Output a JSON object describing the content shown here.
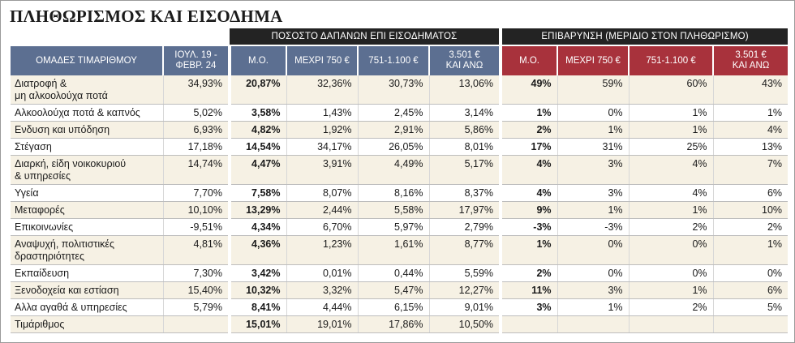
{
  "title": "ΠΛΗΘΩΡΙΣΜΟΣ ΚΑΙ ΕΙΣΟΔΗΜΑ",
  "chart_data": {
    "type": "table",
    "title": "ΠΛΗΘΩΡΙΣΜΟΣ ΚΑΙ ΕΙΣΟΔΗΜΑ",
    "column_groups": [
      {
        "label": "ΠΟΣΟΣΤΟ ΔΑΠΑΝΩΝ ΕΠΙ ΕΙΣΟΔΗΜΑΤΟΣ",
        "span": 4
      },
      {
        "label": "ΕΠΙΒΑΡΥΝΣΗ (ΜΕΡΙΔΙΟ ΣΤΟΝ ΠΛΗΘΩΡΙΣΜΟ)",
        "span": 4
      }
    ],
    "headers": [
      "ΟΜΑΔΕΣ ΤΙΜΑΡΙΘΜΟΥ",
      "ΙΟΥΛ. 19 -\nΦΕΒΡ. 24",
      "Μ.Ο.",
      "ΜΕΧΡΙ 750 €",
      "751-1.100 €",
      "3.501 €\nΚΑΙ ΑΝΩ",
      "Μ.Ο.",
      "ΜΕΧΡΙ 750 €",
      "751-1.100 €",
      "3.501 €\nΚΑΙ ΑΝΩ"
    ],
    "rows": [
      {
        "group": "Διατροφή &\nμη αλκοολούχα ποτά",
        "values": [
          "34,93%",
          "20,87%",
          "32,36%",
          "30,73%",
          "13,06%",
          "49%",
          "59%",
          "60%",
          "43%"
        ]
      },
      {
        "group": "Αλκοολούχα ποτά & καπνός",
        "values": [
          "5,02%",
          "3,58%",
          "1,43%",
          "2,45%",
          "3,14%",
          "1%",
          "0%",
          "1%",
          "1%"
        ]
      },
      {
        "group": "Ενδυση και υπόδηση",
        "values": [
          "6,93%",
          "4,82%",
          "1,92%",
          "2,91%",
          "5,86%",
          "2%",
          "1%",
          "1%",
          "4%"
        ]
      },
      {
        "group": "Στέγαση",
        "values": [
          "17,18%",
          "14,54%",
          "34,17%",
          "26,05%",
          "8,01%",
          "17%",
          "31%",
          "25%",
          "13%"
        ]
      },
      {
        "group": "Διαρκή, είδη νοικοκυριού\n& υπηρεσίες",
        "values": [
          "14,74%",
          "4,47%",
          "3,91%",
          "4,49%",
          "5,17%",
          "4%",
          "3%",
          "4%",
          "7%"
        ]
      },
      {
        "group": "Υγεία",
        "values": [
          "7,70%",
          "7,58%",
          "8,07%",
          "8,16%",
          "8,37%",
          "4%",
          "3%",
          "4%",
          "6%"
        ]
      },
      {
        "group": "Μεταφορές",
        "values": [
          "10,10%",
          "13,29%",
          "2,44%",
          "5,58%",
          "17,97%",
          "9%",
          "1%",
          "1%",
          "10%"
        ]
      },
      {
        "group": "Επικοινωνίες",
        "values": [
          "-9,51%",
          "4,34%",
          "6,70%",
          "5,97%",
          "2,79%",
          "-3%",
          "-3%",
          "2%",
          "2%"
        ]
      },
      {
        "group": "Αναψυχή, πολιτιστικές\nδραστηριότητες",
        "values": [
          "4,81%",
          "4,36%",
          "1,23%",
          "1,61%",
          "8,77%",
          "1%",
          "0%",
          "0%",
          "1%"
        ]
      },
      {
        "group": "Εκπαίδευση",
        "values": [
          "7,30%",
          "3,42%",
          "0,01%",
          "0,44%",
          "5,59%",
          "2%",
          "0%",
          "0%",
          "0%"
        ]
      },
      {
        "group": "Ξενοδοχεία και εστίαση",
        "values": [
          "15,40%",
          "10,32%",
          "3,32%",
          "5,47%",
          "12,27%",
          "11%",
          "3%",
          "1%",
          "6%"
        ]
      },
      {
        "group": "Αλλα αγαθά & υπηρεσίες",
        "values": [
          "5,79%",
          "8,41%",
          "4,44%",
          "6,15%",
          "9,01%",
          "3%",
          "1%",
          "2%",
          "5%"
        ]
      },
      {
        "group": "Τιμάριθμος",
        "values": [
          "",
          "15,01%",
          "19,01%",
          "17,86%",
          "10,50%",
          "",
          "",
          "",
          ""
        ]
      }
    ],
    "bold_columns": [
      1,
      5
    ],
    "colors": {
      "group_header": "#232323",
      "blue_header": "#5c6f91",
      "red_header": "#a8323c",
      "row_stripe": "#f6f1e4"
    }
  }
}
